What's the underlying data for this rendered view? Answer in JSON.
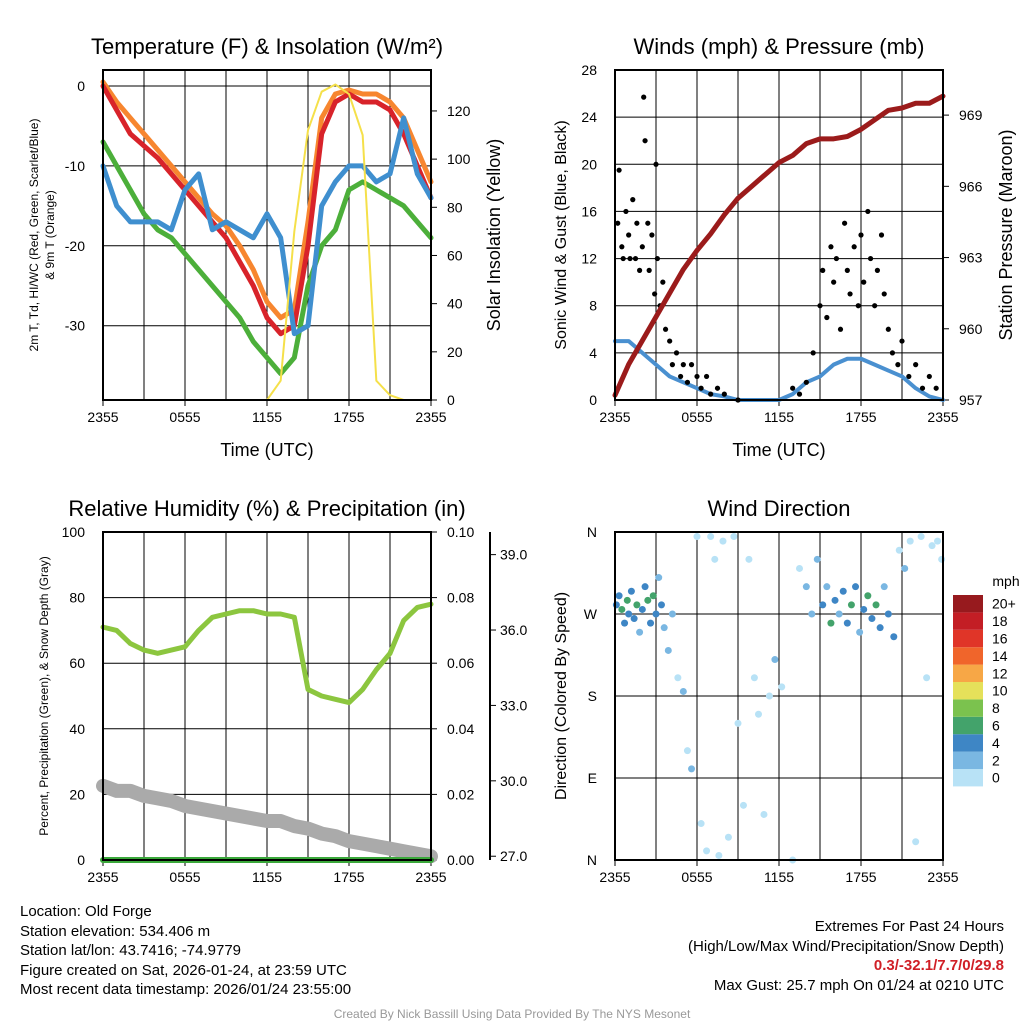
{
  "chart_data": [
    {
      "id": "temp",
      "type": "line",
      "title": "Temperature (F) & Insolation (W/m²)",
      "xlabel": "Time (UTC)",
      "ylabel_line1": "2m T, Td, HI/WC (Red, Green, Scarlet/Blue)",
      "ylabel_line2": "& 9m T (Orange)",
      "y2label": "Solar Insolation (Yellow)",
      "ylim": [
        -39.3,
        2
      ],
      "y2lim": [
        0,
        137
      ],
      "xticks": [
        "2355",
        "0555",
        "1155",
        "1755",
        "2355"
      ],
      "yticks": [
        0,
        -10,
        -20,
        -30
      ],
      "y2ticks": [
        0,
        20,
        40,
        60,
        80,
        100,
        120
      ],
      "x_hours": [
        0,
        1,
        2,
        3,
        4,
        5,
        6,
        7,
        8,
        9,
        10,
        11,
        12,
        13,
        14,
        15,
        16,
        17,
        18,
        19,
        20,
        21,
        22,
        23,
        24
      ],
      "series": [
        {
          "name": "9m T",
          "color": "#f7862f",
          "axis": "left",
          "values": [
            0.5,
            -2,
            -4,
            -6,
            -8,
            -10,
            -12,
            -14,
            -16,
            -17.5,
            -20,
            -23,
            -27,
            -29,
            -28,
            -17,
            -4,
            -1,
            -0.5,
            -1,
            -1,
            -2,
            -4,
            -8,
            -12
          ]
        },
        {
          "name": "2m T",
          "color": "#d8232a",
          "axis": "left",
          "values": [
            0,
            -3,
            -6,
            -7.5,
            -9,
            -11,
            -13,
            -15,
            -17,
            -19,
            -22,
            -25,
            -29,
            -31,
            -30,
            -20,
            -6,
            -2,
            -1,
            -2,
            -2,
            -3,
            -6,
            -10,
            -14
          ]
        },
        {
          "name": "Td",
          "color": "#4caf3a",
          "axis": "left",
          "values": [
            -7,
            -10,
            -13,
            -16,
            -18,
            -19,
            -21,
            -23,
            -25,
            -27,
            -29,
            -32,
            -34,
            -36,
            -34,
            -25,
            -20,
            -18,
            -13,
            -12,
            -13,
            -14,
            -15,
            -17,
            -19
          ]
        },
        {
          "name": "WC",
          "color": "#3f8fcf",
          "axis": "left",
          "values": [
            -10,
            -15,
            -17,
            -17,
            -17,
            -18,
            -13,
            -11,
            -18,
            -17,
            -18,
            -19,
            -16,
            -19,
            -31,
            -30,
            -15,
            -12,
            -10,
            -10,
            -12,
            -11,
            -4,
            -11,
            -14
          ]
        },
        {
          "name": "Solar",
          "color": "#f5e04a",
          "axis": "right",
          "values": [
            0,
            0,
            0,
            0,
            0,
            0,
            0,
            0,
            0,
            0,
            0,
            0,
            0,
            8,
            70,
            112,
            128,
            131,
            127,
            110,
            8,
            2,
            0,
            0,
            0
          ]
        }
      ]
    },
    {
      "id": "wind",
      "type": "line+scatter",
      "title": "Winds (mph) & Pressure (mb)",
      "xlabel": "Time (UTC)",
      "ylabel": "Sonic Wind & Gust (Blue, Black)",
      "y2label": "Station Pressure (Maroon)",
      "ylim": [
        0,
        28
      ],
      "y2lim": [
        957,
        970.9
      ],
      "xticks": [
        "2355",
        "0555",
        "1155",
        "1755",
        "2355"
      ],
      "yticks": [
        0,
        4,
        8,
        12,
        16,
        20,
        24,
        28
      ],
      "y2ticks": [
        957,
        960,
        963,
        966,
        969
      ],
      "x_hours": [
        0,
        1,
        2,
        3,
        4,
        5,
        6,
        7,
        8,
        9,
        10,
        11,
        12,
        13,
        14,
        15,
        16,
        17,
        18,
        19,
        20,
        21,
        22,
        23,
        24
      ],
      "series": [
        {
          "name": "Pressure",
          "color": "#9b1b1b",
          "axis": "right",
          "values": [
            957.2,
            958.5,
            959.5,
            960.5,
            961.5,
            962.5,
            963.3,
            964,
            964.8,
            965.5,
            966,
            966.5,
            967,
            967.3,
            967.8,
            968,
            968,
            968.1,
            968.4,
            968.8,
            969.2,
            969.3,
            969.5,
            969.5,
            969.8
          ]
        },
        {
          "name": "Sonic Wind",
          "color": "#4a90d0",
          "axis": "left",
          "values": [
            5,
            5,
            4,
            3,
            2,
            1.5,
            1,
            0.5,
            0.3,
            0,
            0,
            0,
            0,
            0.5,
            1.5,
            2,
            3,
            3.5,
            3.5,
            3,
            2.5,
            2,
            1,
            0.3,
            0
          ]
        }
      ],
      "gusts": [
        [
          0.2,
          15
        ],
        [
          0.3,
          19.5
        ],
        [
          0.5,
          13
        ],
        [
          0.6,
          12
        ],
        [
          0.8,
          16
        ],
        [
          1,
          14
        ],
        [
          1.1,
          12
        ],
        [
          1.3,
          17
        ],
        [
          1.5,
          12
        ],
        [
          1.6,
          15
        ],
        [
          1.8,
          11
        ],
        [
          2,
          13
        ],
        [
          2.1,
          25.7
        ],
        [
          2.2,
          22
        ],
        [
          2.4,
          15
        ],
        [
          2.5,
          11
        ],
        [
          2.7,
          14
        ],
        [
          2.9,
          9
        ],
        [
          3,
          20
        ],
        [
          3.1,
          12
        ],
        [
          3.3,
          8
        ],
        [
          3.5,
          10
        ],
        [
          3.7,
          6
        ],
        [
          4,
          5
        ],
        [
          4.2,
          3
        ],
        [
          4.5,
          4
        ],
        [
          4.8,
          2
        ],
        [
          5,
          3
        ],
        [
          5.3,
          1.5
        ],
        [
          5.6,
          3
        ],
        [
          6,
          2
        ],
        [
          6.3,
          1
        ],
        [
          6.7,
          2
        ],
        [
          7,
          0.5
        ],
        [
          7.5,
          1
        ],
        [
          8,
          0.5
        ],
        [
          9,
          0
        ],
        [
          13,
          1
        ],
        [
          13.5,
          0.5
        ],
        [
          14,
          1.5
        ],
        [
          14.5,
          4
        ],
        [
          15,
          8
        ],
        [
          15.2,
          11
        ],
        [
          15.5,
          7
        ],
        [
          15.8,
          13
        ],
        [
          16,
          10
        ],
        [
          16.2,
          12
        ],
        [
          16.5,
          6
        ],
        [
          16.8,
          15
        ],
        [
          17,
          11
        ],
        [
          17.2,
          9
        ],
        [
          17.5,
          13
        ],
        [
          17.8,
          8
        ],
        [
          18,
          14
        ],
        [
          18.2,
          10
        ],
        [
          18.5,
          16
        ],
        [
          18.7,
          12
        ],
        [
          19,
          8
        ],
        [
          19.2,
          11
        ],
        [
          19.5,
          14
        ],
        [
          19.7,
          9
        ],
        [
          20,
          6
        ],
        [
          20.3,
          4
        ],
        [
          20.7,
          3
        ],
        [
          21,
          5
        ],
        [
          21.5,
          2
        ],
        [
          22,
          3
        ],
        [
          22.5,
          1
        ],
        [
          23,
          2
        ],
        [
          23.5,
          1
        ]
      ]
    },
    {
      "id": "rh",
      "type": "line",
      "title": "Relative Humidity (%) & Precipitation (in)",
      "ylabel": "Percent, Precipitation (Green), & Snow Depth (Gray)",
      "ylim": [
        0,
        100
      ],
      "y2lim": [
        0,
        0.1
      ],
      "y3lim": [
        26.85,
        39.9
      ],
      "xticks": [
        "2355",
        "0555",
        "1155",
        "1755",
        "2355"
      ],
      "yticks": [
        0,
        20,
        40,
        60,
        80,
        100
      ],
      "y2ticks": [
        "0.00",
        "0.02",
        "0.04",
        "0.06",
        "0.08",
        "0.10"
      ],
      "y3ticks": [
        "27.0",
        "30.0",
        "33.0",
        "36.0",
        "39.0"
      ],
      "x_hours": [
        0,
        1,
        2,
        3,
        4,
        5,
        6,
        7,
        8,
        9,
        10,
        11,
        12,
        13,
        14,
        15,
        16,
        17,
        18,
        19,
        20,
        21,
        22,
        23,
        24
      ],
      "series": [
        {
          "name": "Snow Depth",
          "color": "#aaaaaa",
          "axis": "far",
          "values": [
            29.8,
            29.6,
            29.6,
            29.4,
            29.3,
            29.2,
            29.0,
            28.9,
            28.8,
            28.7,
            28.6,
            28.5,
            28.4,
            28.4,
            28.2,
            28.1,
            27.9,
            27.8,
            27.6,
            27.5,
            27.4,
            27.3,
            27.2,
            27.1,
            27.0
          ]
        },
        {
          "name": "Precipitation",
          "color": "#3aa83a",
          "axis": "right",
          "values": [
            0,
            0,
            0,
            0,
            0,
            0,
            0,
            0,
            0,
            0,
            0,
            0,
            0,
            0,
            0,
            0,
            0,
            0,
            0,
            0,
            0,
            0,
            0,
            0,
            0
          ]
        },
        {
          "name": "RH",
          "color": "#8cc63f",
          "axis": "left",
          "values": [
            71,
            70,
            66,
            64,
            63,
            64,
            65,
            70,
            74,
            75,
            76,
            76,
            75,
            75,
            74,
            52,
            50,
            49,
            48,
            52,
            58,
            63,
            73,
            77,
            78
          ]
        }
      ]
    },
    {
      "id": "dir",
      "type": "scatter",
      "title": "Wind Direction",
      "ylabel": "Direction (Colored By Speed)",
      "xticks": [
        "2355",
        "0555",
        "1155",
        "1755",
        "2355"
      ],
      "yticks": [
        "N",
        "E",
        "S",
        "W",
        "N"
      ],
      "legend_title": "mph",
      "legend": [
        {
          "label": "0",
          "color": "#b8e2f6"
        },
        {
          "label": "2",
          "color": "#7ab7e2"
        },
        {
          "label": "4",
          "color": "#3e86c5"
        },
        {
          "label": "6",
          "color": "#43a36b"
        },
        {
          "label": "8",
          "color": "#7bc24e"
        },
        {
          "label": "10",
          "color": "#e5e15a"
        },
        {
          "label": "12",
          "color": "#f7a746"
        },
        {
          "label": "14",
          "color": "#f0652b"
        },
        {
          "label": "16",
          "color": "#e03528"
        },
        {
          "label": "18",
          "color": "#c31e25"
        },
        {
          "label": "20+",
          "color": "#971a1e"
        }
      ],
      "points": [
        [
          0.1,
          280,
          4
        ],
        [
          0.3,
          290,
          5
        ],
        [
          0.5,
          275,
          7
        ],
        [
          0.7,
          260,
          4
        ],
        [
          0.9,
          285,
          6
        ],
        [
          1,
          270,
          4
        ],
        [
          1.2,
          295,
          5
        ],
        [
          1.4,
          265,
          4
        ],
        [
          1.6,
          280,
          7
        ],
        [
          1.8,
          250,
          3
        ],
        [
          2,
          275,
          4
        ],
        [
          2.2,
          300,
          5
        ],
        [
          2.4,
          285,
          7
        ],
        [
          2.6,
          260,
          4
        ],
        [
          2.8,
          290,
          6
        ],
        [
          3,
          270,
          4
        ],
        [
          3.2,
          310,
          3
        ],
        [
          3.4,
          280,
          4
        ],
        [
          3.6,
          255,
          2
        ],
        [
          3.9,
          230,
          2
        ],
        [
          4.2,
          270,
          2
        ],
        [
          4.6,
          200,
          1
        ],
        [
          5,
          185,
          2
        ],
        [
          5.3,
          120,
          1
        ],
        [
          5.6,
          100,
          2
        ],
        [
          6,
          355,
          1
        ],
        [
          6.3,
          40,
          0
        ],
        [
          6.7,
          10,
          1
        ],
        [
          7,
          355,
          1
        ],
        [
          7.3,
          330,
          0
        ],
        [
          7.6,
          5,
          1
        ],
        [
          7.9,
          350,
          0
        ],
        [
          8.3,
          25,
          0
        ],
        [
          8.7,
          355,
          1
        ],
        [
          9,
          150,
          0
        ],
        [
          9.4,
          60,
          1
        ],
        [
          9.8,
          330,
          0
        ],
        [
          10.2,
          200,
          0
        ],
        [
          10.5,
          160,
          1
        ],
        [
          10.9,
          50,
          0
        ],
        [
          11.3,
          180,
          1
        ],
        [
          11.7,
          220,
          2
        ],
        [
          12.2,
          190,
          0
        ],
        [
          13,
          0,
          0
        ],
        [
          13.5,
          320,
          1
        ],
        [
          14,
          300,
          2
        ],
        [
          14.4,
          270,
          3
        ],
        [
          14.8,
          330,
          2
        ],
        [
          15.2,
          280,
          4
        ],
        [
          15.5,
          300,
          3
        ],
        [
          15.8,
          260,
          6
        ],
        [
          16.1,
          285,
          4
        ],
        [
          16.4,
          270,
          3
        ],
        [
          16.7,
          295,
          5
        ],
        [
          17,
          260,
          4
        ],
        [
          17.3,
          280,
          6
        ],
        [
          17.6,
          300,
          4
        ],
        [
          17.9,
          250,
          3
        ],
        [
          18.2,
          275,
          5
        ],
        [
          18.5,
          290,
          7
        ],
        [
          18.8,
          265,
          4
        ],
        [
          19.1,
          280,
          6
        ],
        [
          19.4,
          255,
          4
        ],
        [
          19.7,
          300,
          3
        ],
        [
          20,
          270,
          4
        ],
        [
          20.4,
          245,
          4
        ],
        [
          20.8,
          340,
          1
        ],
        [
          21.2,
          320,
          2
        ],
        [
          21.6,
          350,
          0
        ],
        [
          22,
          20,
          1
        ],
        [
          22.4,
          355,
          0
        ],
        [
          22.8,
          200,
          1
        ],
        [
          23.2,
          345,
          0
        ],
        [
          23.6,
          350,
          0
        ],
        [
          23.9,
          330,
          1
        ]
      ]
    }
  ],
  "info": {
    "location": "Location: Old Forge",
    "elevation": "Station elevation: 534.406 m",
    "latlon": "Station lat/lon: 43.7416; -74.9779",
    "created": "Figure created on Sat, 2026-01-24, at 23:59 UTC",
    "recent": "Most recent data timestamp: 2026/01/24 23:55:00"
  },
  "extremes": {
    "title": "Extremes For Past 24 Hours",
    "subtitle": "(High/Low/Max Wind/Precipitation/Snow Depth)",
    "values": "0.3/-32.1/7.7/0/29.8",
    "max_gust": "Max Gust: 25.7 mph On 01/24 at 0210 UTC"
  },
  "credit": "Created By Nick Bassill Using Data Provided By The NYS Mesonet"
}
